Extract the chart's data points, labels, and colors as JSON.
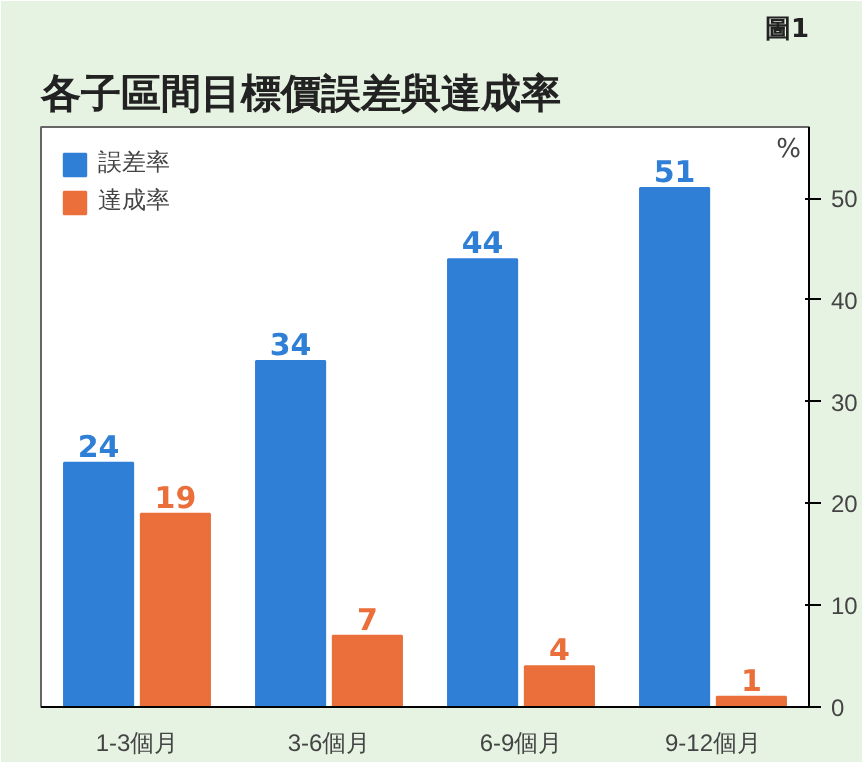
{
  "chart_data": {
    "type": "bar",
    "title": "各子區間目標價誤差與達成率",
    "ylabel": "%",
    "annotations": [
      "圖1"
    ],
    "categories": [
      "1-3個月",
      "3-6個月",
      "6-9個月",
      "9-12個月"
    ],
    "series": [
      {
        "name": "誤差率",
        "color": "#2f7fd6",
        "values": [
          24,
          34,
          44,
          51
        ]
      },
      {
        "name": "達成率",
        "color": "#ea6f3a",
        "values": [
          19,
          7,
          4,
          1
        ]
      }
    ],
    "ylim": [
      0,
      57
    ],
    "yticks": [
      0,
      10,
      20,
      30,
      40,
      50
    ],
    "data_labels": true,
    "legend": "top left",
    "grid": false
  }
}
